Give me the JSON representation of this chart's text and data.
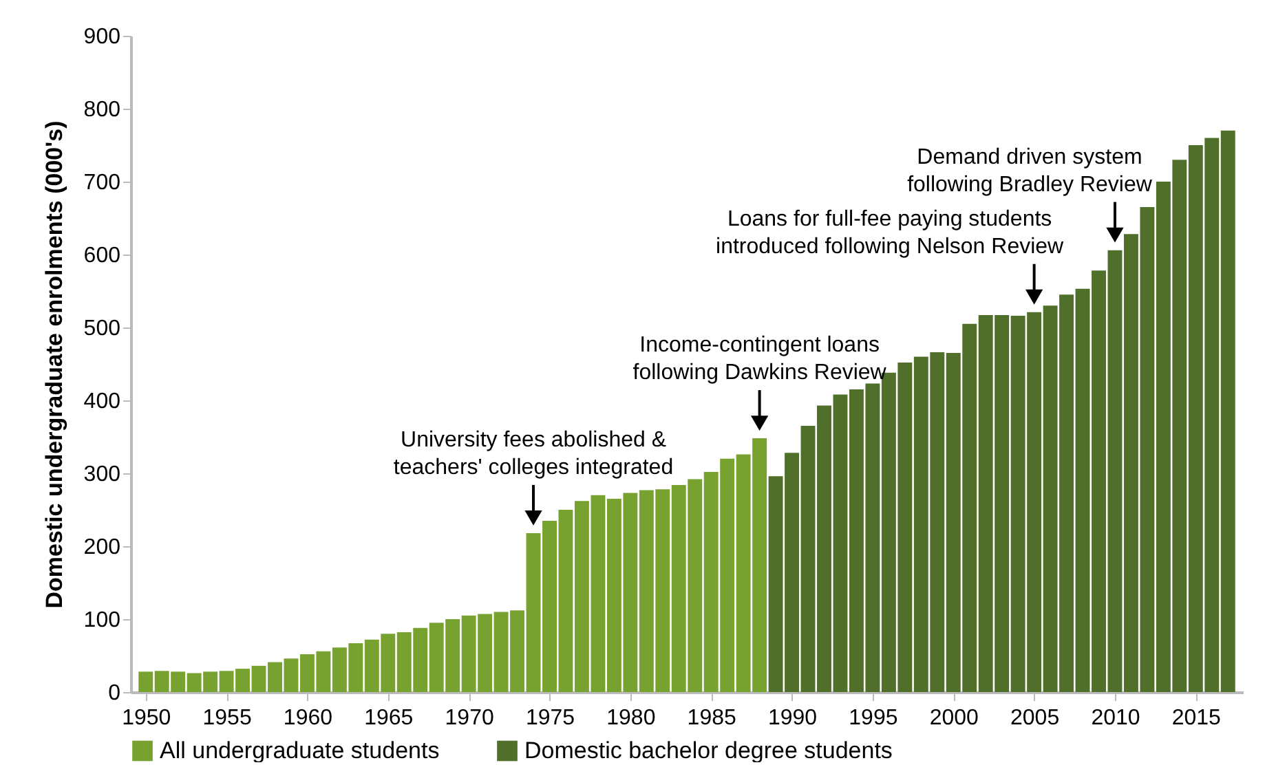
{
  "chart_data": {
    "type": "bar",
    "stacked": true,
    "ylabel": "Domestic undergraduate enrolments (000's)",
    "x": [
      1950,
      1951,
      1952,
      1953,
      1954,
      1955,
      1956,
      1957,
      1958,
      1959,
      1960,
      1961,
      1962,
      1963,
      1964,
      1965,
      1966,
      1967,
      1968,
      1969,
      1970,
      1971,
      1972,
      1973,
      1974,
      1975,
      1976,
      1977,
      1978,
      1979,
      1980,
      1981,
      1982,
      1983,
      1984,
      1985,
      1986,
      1987,
      1988,
      1989,
      1990,
      1991,
      1992,
      1993,
      1994,
      1995,
      1996,
      1997,
      1998,
      1999,
      2000,
      2001,
      2002,
      2003,
      2004,
      2005,
      2006,
      2007,
      2008,
      2009,
      2010,
      2011,
      2012,
      2013,
      2014,
      2015,
      2016,
      2017
    ],
    "xlim": [
      1949.5,
      2017.5
    ],
    "xticks": [
      1950,
      1955,
      1960,
      1965,
      1970,
      1975,
      1980,
      1985,
      1990,
      1995,
      2000,
      2005,
      2010,
      2015
    ],
    "ylim": [
      0,
      900
    ],
    "yticks": [
      0,
      100,
      200,
      300,
      400,
      500,
      600,
      700,
      800,
      900
    ],
    "series": [
      {
        "name": "All undergraduate students",
        "color": "#77a22f",
        "values": [
          28,
          29,
          28,
          26,
          28,
          29,
          32,
          36,
          41,
          46,
          52,
          56,
          61,
          67,
          72,
          80,
          82,
          88,
          95,
          100,
          105,
          107,
          110,
          112,
          218,
          235,
          250,
          262,
          270,
          265,
          273,
          277,
          278,
          284,
          292,
          302,
          320,
          326,
          348,
          null,
          null,
          null,
          null,
          null,
          null,
          null,
          null,
          null,
          null,
          null,
          null,
          null,
          null,
          null,
          null,
          null,
          null,
          null,
          null,
          null,
          null,
          null,
          null,
          null,
          null,
          null,
          null,
          null
        ]
      },
      {
        "name": "Domestic bachelor degree students",
        "color": "#4f6f2b",
        "values": [
          null,
          null,
          null,
          null,
          null,
          null,
          null,
          null,
          null,
          null,
          null,
          null,
          null,
          null,
          null,
          null,
          null,
          null,
          null,
          null,
          null,
          null,
          null,
          null,
          null,
          null,
          null,
          null,
          null,
          null,
          null,
          null,
          null,
          null,
          null,
          null,
          null,
          null,
          null,
          296,
          328,
          365,
          393,
          408,
          415,
          423,
          438,
          452,
          460,
          466,
          465,
          505,
          517,
          517,
          516,
          521,
          530,
          545,
          553,
          578,
          606,
          628,
          665,
          700,
          730,
          750,
          760,
          770
        ]
      }
    ],
    "annotations": [
      {
        "text": "University fees abolished &\nteachers' colleges integrated",
        "x": 1974,
        "y": 218
      },
      {
        "text": "Income-contingent loans\nfollowing Dawkins Review",
        "x": 1988,
        "y": 348
      },
      {
        "text": "Loans for full-fee paying students\nintroduced following Nelson Review",
        "x": 2005,
        "y": 521
      },
      {
        "text": "Demand driven system\nfollowing Bradley Review",
        "x": 2010,
        "y": 606
      }
    ],
    "legend": "bottom",
    "grid": false
  }
}
